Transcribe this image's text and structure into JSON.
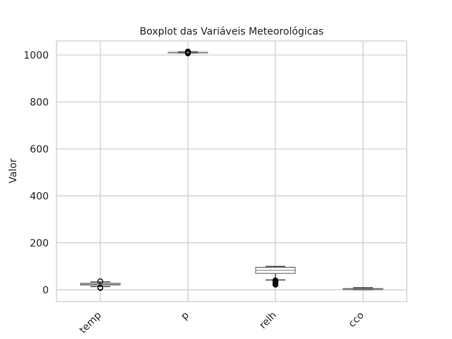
{
  "chart_data": {
    "type": "boxplot",
    "title": "Boxplot das Variáveis Meteorológicas",
    "xlabel": "",
    "ylabel": "Valor",
    "categories": [
      "temp",
      "p",
      "relh",
      "cco"
    ],
    "ylim": [
      -50,
      1060
    ],
    "yticks": [
      0,
      200,
      400,
      600,
      800,
      1000
    ],
    "grid": true,
    "boxes": [
      {
        "name": "temp",
        "whisker_low": 14,
        "q1": 20,
        "median": 24,
        "q3": 28,
        "whisker_high": 34,
        "outliers": [
          8,
          10,
          36
        ]
      },
      {
        "name": "p",
        "whisker_low": 1008,
        "q1": 1010,
        "median": 1011,
        "q3": 1012,
        "whisker_high": 1014,
        "outliers": [
          1007,
          1009,
          1012,
          1013,
          1015
        ]
      },
      {
        "name": "relh",
        "whisker_low": 42,
        "q1": 70,
        "median": 83,
        "q3": 96,
        "whisker_high": 100,
        "outliers": [
          22,
          26,
          30,
          33,
          36,
          38,
          40
        ]
      },
      {
        "name": "cco",
        "whisker_low": 0,
        "q1": 1,
        "median": 3,
        "q3": 6,
        "whisker_high": 9,
        "outliers": []
      }
    ]
  }
}
